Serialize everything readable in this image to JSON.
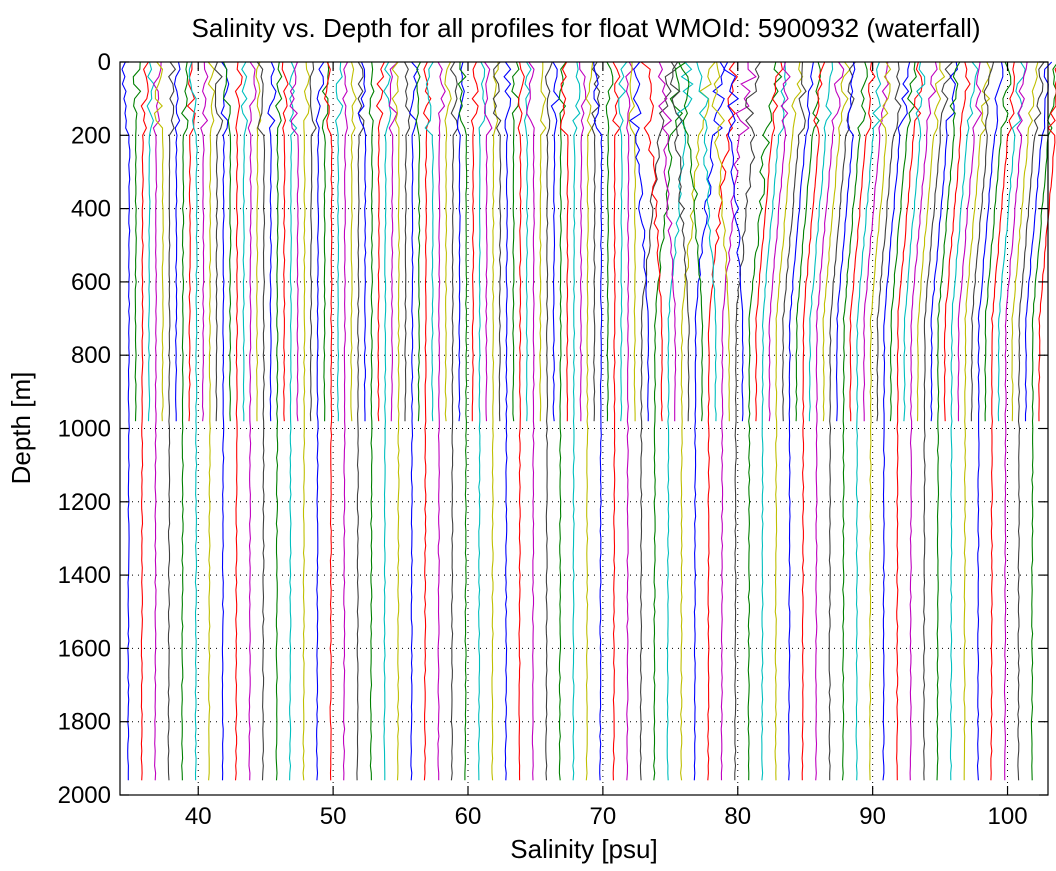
{
  "chart_data": {
    "type": "line",
    "title": "Salinity vs. Depth for all profiles for float WMOId: 5900932 (waterfall)",
    "xlabel": "Salinity [psu]",
    "ylabel": "Depth [m]",
    "xlim": [
      34.2,
      103
    ],
    "ylim": [
      2000,
      0
    ],
    "y_reversed": true,
    "grid": true,
    "xticks": [
      40,
      50,
      60,
      70,
      80,
      90,
      100
    ],
    "yticks": [
      0,
      200,
      400,
      600,
      800,
      1000,
      1200,
      1400,
      1600,
      1800,
      2000
    ],
    "waterfall_offset_per_profile": 0.5,
    "color_cycle": [
      "#0000ff",
      "#008000",
      "#ff0000",
      "#00bfbf",
      "#bf00bf",
      "#bfbf00",
      "#404040"
    ],
    "profile_count": 136,
    "deep_profiles_every": 2,
    "series_description_values": {
      "surface_salinity_first_profile": 34.9,
      "deep_salinity_first_profile": 34.8,
      "shallow_profile_bottom_depth": 985,
      "deep_profile_bottom_depth": 1975
    }
  }
}
